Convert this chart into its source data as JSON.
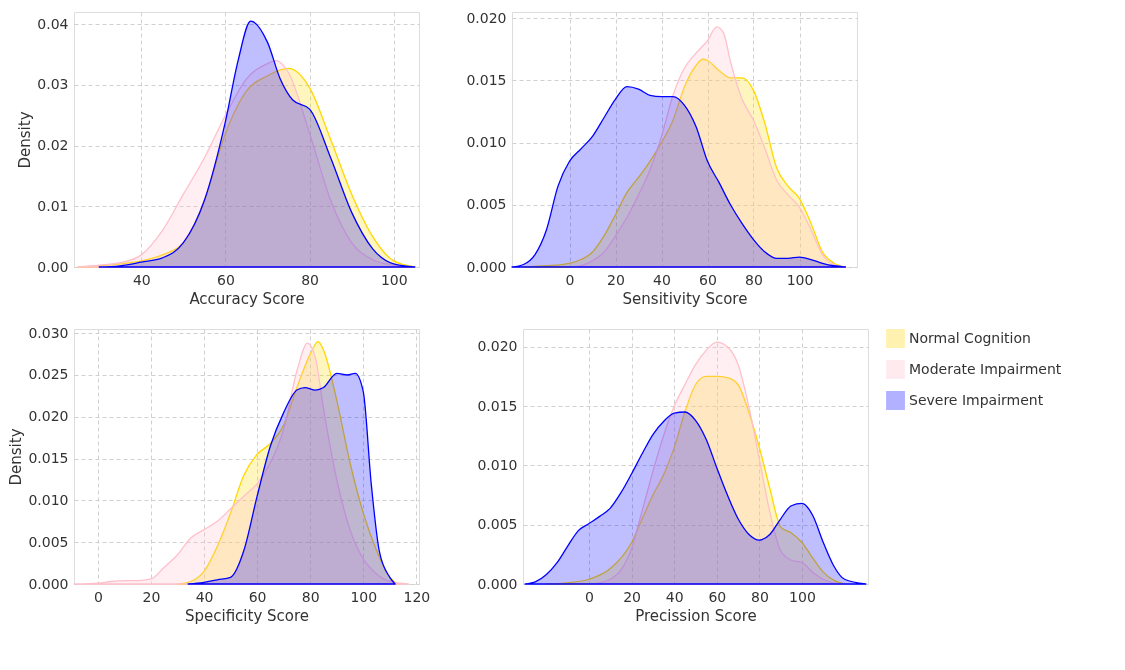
{
  "chart_data": [
    {
      "type": "area",
      "xlabel": "Accuracy Score",
      "ylabel": "Density",
      "xlim": [
        24,
        106
      ],
      "xticks": [
        40,
        60,
        80,
        100
      ],
      "ylim": [
        0,
        0.042
      ],
      "yticks": [
        {
          "value": 0,
          "label": "0.00"
        },
        {
          "value": 0.01,
          "label": "0.01"
        },
        {
          "value": 0.02,
          "label": "0.02"
        },
        {
          "value": 0.03,
          "label": "0.03"
        },
        {
          "value": 0.04,
          "label": "0.04"
        }
      ],
      "grid": true,
      "legend": false,
      "series": [
        {
          "color": "#ffd700",
          "x": [
            25,
            30,
            35,
            40,
            45,
            50,
            55,
            60,
            65,
            70,
            75,
            80,
            85,
            90,
            95,
            100,
            105
          ],
          "values": [
            0,
            0.0002,
            0.0005,
            0.001,
            0.002,
            0.004,
            0.011,
            0.022,
            0.029,
            0.0315,
            0.0327,
            0.0295,
            0.021,
            0.012,
            0.005,
            0.001,
            0
          ]
        },
        {
          "color": "#ffc0cb",
          "x": [
            25,
            30,
            35,
            40,
            45,
            50,
            55,
            60,
            65,
            70,
            72,
            75,
            80,
            85,
            90,
            95,
            100,
            105
          ],
          "values": [
            0,
            0.0003,
            0.0007,
            0.002,
            0.006,
            0.012,
            0.018,
            0.025,
            0.031,
            0.0335,
            0.034,
            0.032,
            0.022,
            0.011,
            0.004,
            0.0012,
            0.0003,
            0
          ]
        },
        {
          "color": "#0000ff",
          "x": [
            30,
            35,
            40,
            45,
            50,
            55,
            60,
            63,
            66,
            70,
            73,
            76,
            80,
            85,
            90,
            95,
            100,
            105
          ],
          "values": [
            0,
            0.0002,
            0.0008,
            0.0015,
            0.004,
            0.011,
            0.024,
            0.034,
            0.0405,
            0.037,
            0.031,
            0.0275,
            0.026,
            0.018,
            0.009,
            0.003,
            0.0005,
            0
          ]
        }
      ]
    },
    {
      "type": "area",
      "xlabel": "Sensitivity Score",
      "xlim": [
        -25,
        125
      ],
      "xticks": [
        0,
        20,
        40,
        60,
        80,
        100
      ],
      "ylim": [
        0,
        0.0205
      ],
      "yticks": [
        {
          "value": 0,
          "label": "0.000"
        },
        {
          "value": 0.005,
          "label": "0.005"
        },
        {
          "value": 0.01,
          "label": "0.010"
        },
        {
          "value": 0.015,
          "label": "0.015"
        },
        {
          "value": 0.02,
          "label": "0.020"
        }
      ],
      "grid": true,
      "legend": false,
      "series": [
        {
          "color": "#ffd700",
          "x": [
            -20,
            -10,
            0,
            5,
            10,
            15,
            20,
            25,
            30,
            35,
            40,
            45,
            50,
            55,
            58,
            60,
            65,
            70,
            75,
            80,
            85,
            90,
            95,
            100,
            105,
            110,
            115,
            120
          ],
          "values": [
            0,
            0.0001,
            0.0003,
            0.0006,
            0.0012,
            0.0025,
            0.0042,
            0.006,
            0.0072,
            0.0085,
            0.01,
            0.0118,
            0.0145,
            0.0162,
            0.0167,
            0.0166,
            0.0158,
            0.0152,
            0.0152,
            0.0142,
            0.0115,
            0.008,
            0.0065,
            0.0055,
            0.0035,
            0.0012,
            0.0003,
            0
          ]
        },
        {
          "color": "#ffc0cb",
          "x": [
            0,
            5,
            10,
            15,
            20,
            25,
            30,
            35,
            40,
            45,
            50,
            55,
            60,
            64,
            67,
            70,
            75,
            80,
            85,
            90,
            95,
            100,
            105,
            110,
            115,
            120
          ],
          "values": [
            0,
            0.0001,
            0.0005,
            0.0012,
            0.0025,
            0.004,
            0.0058,
            0.0078,
            0.0105,
            0.0138,
            0.016,
            0.0172,
            0.0182,
            0.0193,
            0.0188,
            0.0165,
            0.0135,
            0.0118,
            0.0095,
            0.007,
            0.0058,
            0.0048,
            0.003,
            0.001,
            0.0002,
            0
          ]
        },
        {
          "color": "#0000ff",
          "x": [
            -25,
            -20,
            -15,
            -10,
            -5,
            0,
            5,
            10,
            15,
            20,
            25,
            30,
            35,
            40,
            45,
            50,
            55,
            60,
            65,
            70,
            75,
            80,
            85,
            90,
            95,
            100,
            105,
            110,
            115,
            120
          ],
          "values": [
            0,
            0.0002,
            0.001,
            0.003,
            0.0065,
            0.0085,
            0.0095,
            0.0105,
            0.012,
            0.0135,
            0.0145,
            0.0143,
            0.0138,
            0.0137,
            0.0137,
            0.013,
            0.0113,
            0.0085,
            0.0068,
            0.005,
            0.0035,
            0.0022,
            0.0012,
            0.0007,
            0.0007,
            0.0008,
            0.0006,
            0.0003,
            0.0001,
            0
          ]
        }
      ]
    },
    {
      "type": "area",
      "xlabel": "Specificity Score",
      "ylabel": "Density",
      "xlim": [
        -9,
        121
      ],
      "xticks": [
        0,
        20,
        40,
        60,
        80,
        100,
        120
      ],
      "ylim": [
        0,
        0.0305
      ],
      "yticks": [
        {
          "value": 0,
          "label": "0.000"
        },
        {
          "value": 0.005,
          "label": "0.005"
        },
        {
          "value": 0.01,
          "label": "0.010"
        },
        {
          "value": 0.015,
          "label": "0.015"
        },
        {
          "value": 0.02,
          "label": "0.020"
        },
        {
          "value": 0.025,
          "label": "0.025"
        },
        {
          "value": 0.03,
          "label": "0.030"
        }
      ],
      "grid": true,
      "legend": false,
      "series": [
        {
          "color": "#ffd700",
          "x": [
            30,
            35,
            40,
            45,
            50,
            55,
            60,
            65,
            70,
            75,
            80,
            83,
            85,
            90,
            95,
            100,
            105,
            110,
            113
          ],
          "values": [
            0,
            0.0003,
            0.0015,
            0.0045,
            0.0085,
            0.013,
            0.0155,
            0.0168,
            0.019,
            0.0235,
            0.0275,
            0.029,
            0.028,
            0.022,
            0.0145,
            0.0085,
            0.004,
            0.0008,
            0
          ]
        },
        {
          "color": "#ffc0cb",
          "x": [
            -9,
            0,
            5,
            10,
            15,
            20,
            25,
            30,
            35,
            40,
            45,
            50,
            55,
            60,
            65,
            70,
            75,
            79,
            82,
            85,
            90,
            95,
            100,
            105,
            110,
            117
          ],
          "values": [
            0,
            0.0001,
            0.0003,
            0.0004,
            0.0004,
            0.0006,
            0.002,
            0.0035,
            0.0055,
            0.0065,
            0.0075,
            0.009,
            0.0105,
            0.012,
            0.0145,
            0.0185,
            0.0255,
            0.0288,
            0.027,
            0.021,
            0.0125,
            0.0065,
            0.003,
            0.0012,
            0.0003,
            0
          ]
        },
        {
          "color": "#0000ff",
          "x": [
            34,
            40,
            45,
            50,
            55,
            60,
            65,
            70,
            75,
            78,
            82,
            85,
            90,
            94,
            97,
            100,
            103,
            106,
            110,
            112
          ],
          "values": [
            0,
            0.0002,
            0.0005,
            0.0008,
            0.004,
            0.0105,
            0.0165,
            0.0205,
            0.0232,
            0.0235,
            0.0232,
            0.0235,
            0.0252,
            0.025,
            0.0252,
            0.023,
            0.012,
            0.004,
            0.0008,
            0
          ]
        }
      ]
    },
    {
      "type": "area",
      "xlabel": "Precission Score",
      "xlim": [
        -31,
        131
      ],
      "xticks": [
        0,
        20,
        40,
        60,
        80,
        100
      ],
      "ylim": [
        0,
        0.0215
      ],
      "yticks": [
        {
          "value": 0,
          "label": "0.000"
        },
        {
          "value": 0.005,
          "label": "0.005"
        },
        {
          "value": 0.01,
          "label": "0.010"
        },
        {
          "value": 0.015,
          "label": "0.015"
        },
        {
          "value": 0.02,
          "label": "0.020"
        }
      ],
      "grid": true,
      "legend": "right",
      "series": [
        {
          "name": "Normal Cognition",
          "color": "#ffd700",
          "x": [
            -20,
            -10,
            0,
            10,
            20,
            25,
            30,
            35,
            40,
            45,
            50,
            55,
            60,
            65,
            70,
            75,
            80,
            85,
            90,
            95,
            100,
            105,
            110,
            115,
            120
          ],
          "values": [
            0,
            0.0001,
            0.0004,
            0.0013,
            0.0035,
            0.0055,
            0.0075,
            0.0092,
            0.0115,
            0.0145,
            0.0168,
            0.0175,
            0.0175,
            0.0174,
            0.0168,
            0.0145,
            0.0115,
            0.008,
            0.0048,
            0.0043,
            0.0035,
            0.0022,
            0.001,
            0.0003,
            0
          ]
        },
        {
          "name": "Moderate Impairment",
          "color": "#ffc0cb",
          "x": [
            0,
            5,
            10,
            15,
            20,
            25,
            30,
            35,
            40,
            45,
            50,
            55,
            60,
            65,
            70,
            75,
            80,
            85,
            90,
            95,
            100,
            105,
            110,
            115,
            120
          ],
          "values": [
            0,
            0.0001,
            0.0004,
            0.0012,
            0.003,
            0.0062,
            0.0095,
            0.0125,
            0.015,
            0.0168,
            0.0185,
            0.0197,
            0.0204,
            0.02,
            0.0185,
            0.015,
            0.0105,
            0.006,
            0.0028,
            0.002,
            0.0018,
            0.001,
            0.0004,
            0.0001,
            0
          ]
        },
        {
          "name": "Severe Impairment",
          "color": "#0000ff",
          "x": [
            -30,
            -25,
            -20,
            -15,
            -10,
            -5,
            0,
            5,
            10,
            15,
            20,
            25,
            30,
            35,
            40,
            45,
            50,
            55,
            60,
            65,
            70,
            75,
            80,
            85,
            90,
            95,
            100,
            105,
            110,
            115,
            120,
            130
          ],
          "values": [
            0,
            0.0002,
            0.0008,
            0.0018,
            0.0032,
            0.0045,
            0.0051,
            0.0057,
            0.0064,
            0.0077,
            0.0093,
            0.011,
            0.0126,
            0.0137,
            0.0144,
            0.0145,
            0.0138,
            0.0122,
            0.0098,
            0.0075,
            0.0055,
            0.0042,
            0.0037,
            0.0042,
            0.0055,
            0.0066,
            0.0068,
            0.0058,
            0.0035,
            0.0015,
            0.0004,
            0
          ]
        }
      ]
    }
  ]
}
